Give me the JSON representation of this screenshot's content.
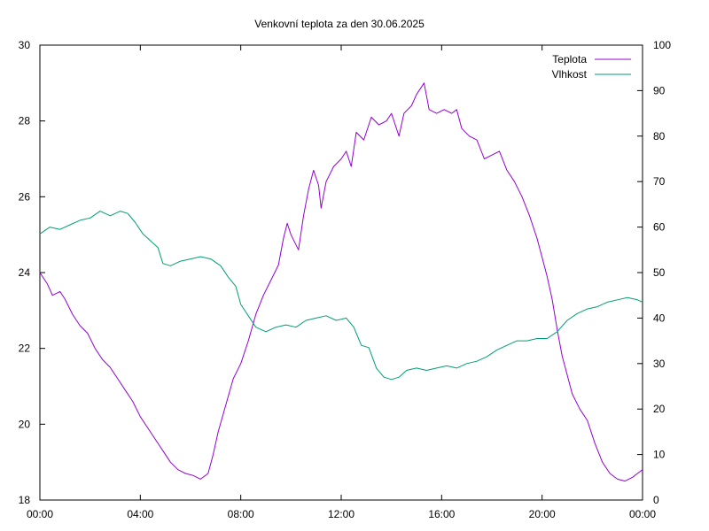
{
  "chart_data": {
    "type": "line",
    "title": "Venkovní teplota za den 30.06.2025",
    "x_ticks": [
      "00:00",
      "04:00",
      "08:00",
      "12:00",
      "16:00",
      "20:00",
      "00:00"
    ],
    "xlim_hours": [
      0,
      24
    ],
    "y_left": {
      "ylim": [
        18,
        30
      ],
      "ticks": [
        "18",
        "20",
        "22",
        "24",
        "26",
        "28",
        "30"
      ]
    },
    "y_right": {
      "ylim": [
        0,
        100
      ],
      "ticks": [
        "0",
        "10",
        "20",
        "30",
        "40",
        "50",
        "60",
        "70",
        "80",
        "90",
        "100"
      ]
    },
    "legend_position": "top-right",
    "grid": false,
    "series": [
      {
        "name": "Teplota",
        "axis": "left",
        "color": "#9400d3",
        "points": [
          [
            0,
            24.0
          ],
          [
            0.3,
            23.7
          ],
          [
            0.5,
            23.4
          ],
          [
            0.8,
            23.5
          ],
          [
            1.0,
            23.3
          ],
          [
            1.3,
            22.9
          ],
          [
            1.6,
            22.6
          ],
          [
            1.9,
            22.4
          ],
          [
            2.2,
            22.0
          ],
          [
            2.5,
            21.7
          ],
          [
            2.8,
            21.5
          ],
          [
            3.1,
            21.2
          ],
          [
            3.4,
            20.9
          ],
          [
            3.7,
            20.6
          ],
          [
            4.0,
            20.2
          ],
          [
            4.3,
            19.9
          ],
          [
            4.6,
            19.6
          ],
          [
            4.9,
            19.3
          ],
          [
            5.2,
            19.0
          ],
          [
            5.5,
            18.8
          ],
          [
            5.8,
            18.7
          ],
          [
            6.1,
            18.65
          ],
          [
            6.4,
            18.55
          ],
          [
            6.7,
            18.7
          ],
          [
            6.9,
            19.2
          ],
          [
            7.1,
            19.8
          ],
          [
            7.4,
            20.5
          ],
          [
            7.7,
            21.2
          ],
          [
            8.0,
            21.6
          ],
          [
            8.3,
            22.2
          ],
          [
            8.6,
            22.9
          ],
          [
            8.9,
            23.4
          ],
          [
            9.2,
            23.8
          ],
          [
            9.5,
            24.2
          ],
          [
            9.7,
            24.9
          ],
          [
            9.85,
            25.3
          ],
          [
            10.0,
            25.0
          ],
          [
            10.3,
            24.6
          ],
          [
            10.5,
            25.5
          ],
          [
            10.7,
            26.2
          ],
          [
            10.9,
            26.7
          ],
          [
            11.1,
            26.3
          ],
          [
            11.2,
            25.7
          ],
          [
            11.4,
            26.4
          ],
          [
            11.7,
            26.8
          ],
          [
            12.0,
            27.0
          ],
          [
            12.2,
            27.2
          ],
          [
            12.4,
            26.8
          ],
          [
            12.6,
            27.7
          ],
          [
            12.9,
            27.5
          ],
          [
            13.2,
            28.1
          ],
          [
            13.5,
            27.9
          ],
          [
            13.8,
            28.0
          ],
          [
            14.0,
            28.2
          ],
          [
            14.3,
            27.6
          ],
          [
            14.5,
            28.2
          ],
          [
            14.8,
            28.4
          ],
          [
            15.0,
            28.7
          ],
          [
            15.3,
            29.0
          ],
          [
            15.5,
            28.3
          ],
          [
            15.8,
            28.2
          ],
          [
            16.1,
            28.3
          ],
          [
            16.4,
            28.2
          ],
          [
            16.6,
            28.3
          ],
          [
            16.8,
            27.8
          ],
          [
            17.1,
            27.6
          ],
          [
            17.4,
            27.5
          ],
          [
            17.7,
            27.0
          ],
          [
            18.0,
            27.1
          ],
          [
            18.3,
            27.2
          ],
          [
            18.6,
            26.7
          ],
          [
            18.9,
            26.4
          ],
          [
            19.2,
            26.0
          ],
          [
            19.5,
            25.5
          ],
          [
            19.8,
            24.9
          ],
          [
            20.0,
            24.4
          ],
          [
            20.2,
            23.9
          ],
          [
            20.4,
            23.3
          ],
          [
            20.6,
            22.5
          ],
          [
            20.8,
            21.8
          ],
          [
            21.0,
            21.3
          ],
          [
            21.2,
            20.8
          ],
          [
            21.5,
            20.4
          ],
          [
            21.8,
            20.1
          ],
          [
            22.1,
            19.5
          ],
          [
            22.4,
            19.0
          ],
          [
            22.7,
            18.7
          ],
          [
            23.0,
            18.55
          ],
          [
            23.3,
            18.5
          ],
          [
            23.6,
            18.6
          ],
          [
            23.8,
            18.7
          ],
          [
            24.0,
            18.8
          ]
        ]
      },
      {
        "name": "Vlhkost",
        "axis": "right",
        "color": "#009e73",
        "points": [
          [
            0,
            58.5
          ],
          [
            0.4,
            60.0
          ],
          [
            0.8,
            59.5
          ],
          [
            1.2,
            60.5
          ],
          [
            1.6,
            61.5
          ],
          [
            2.0,
            62.0
          ],
          [
            2.4,
            63.5
          ],
          [
            2.8,
            62.5
          ],
          [
            3.2,
            63.5
          ],
          [
            3.5,
            63.0
          ],
          [
            3.8,
            61.0
          ],
          [
            4.1,
            58.5
          ],
          [
            4.4,
            57.0
          ],
          [
            4.7,
            55.5
          ],
          [
            4.9,
            52.0
          ],
          [
            5.2,
            51.5
          ],
          [
            5.6,
            52.5
          ],
          [
            6.0,
            53.0
          ],
          [
            6.4,
            53.5
          ],
          [
            6.8,
            53.0
          ],
          [
            7.2,
            51.5
          ],
          [
            7.5,
            49.0
          ],
          [
            7.8,
            47.0
          ],
          [
            8.0,
            43.0
          ],
          [
            8.3,
            40.5
          ],
          [
            8.6,
            38.0
          ],
          [
            8.8,
            37.5
          ],
          [
            9.0,
            37.0
          ],
          [
            9.4,
            38.0
          ],
          [
            9.8,
            38.5
          ],
          [
            10.2,
            38.0
          ],
          [
            10.6,
            39.5
          ],
          [
            11.0,
            40.0
          ],
          [
            11.4,
            40.5
          ],
          [
            11.8,
            39.5
          ],
          [
            12.2,
            40.0
          ],
          [
            12.5,
            38.0
          ],
          [
            12.8,
            34.0
          ],
          [
            13.1,
            33.5
          ],
          [
            13.4,
            29.0
          ],
          [
            13.7,
            27.0
          ],
          [
            14.0,
            26.5
          ],
          [
            14.3,
            27.0
          ],
          [
            14.6,
            28.5
          ],
          [
            15.0,
            29.0
          ],
          [
            15.4,
            28.5
          ],
          [
            15.8,
            29.0
          ],
          [
            16.2,
            29.5
          ],
          [
            16.6,
            29.0
          ],
          [
            17.0,
            30.0
          ],
          [
            17.4,
            30.5
          ],
          [
            17.8,
            31.5
          ],
          [
            18.2,
            33.0
          ],
          [
            18.6,
            34.0
          ],
          [
            19.0,
            35.0
          ],
          [
            19.4,
            35.0
          ],
          [
            19.8,
            35.5
          ],
          [
            20.2,
            35.5
          ],
          [
            20.6,
            37.0
          ],
          [
            21.0,
            39.5
          ],
          [
            21.4,
            41.0
          ],
          [
            21.8,
            42.0
          ],
          [
            22.2,
            42.5
          ],
          [
            22.6,
            43.5
          ],
          [
            23.0,
            44.0
          ],
          [
            23.4,
            44.5
          ],
          [
            23.8,
            44.0
          ],
          [
            24.0,
            43.5
          ]
        ]
      }
    ]
  }
}
